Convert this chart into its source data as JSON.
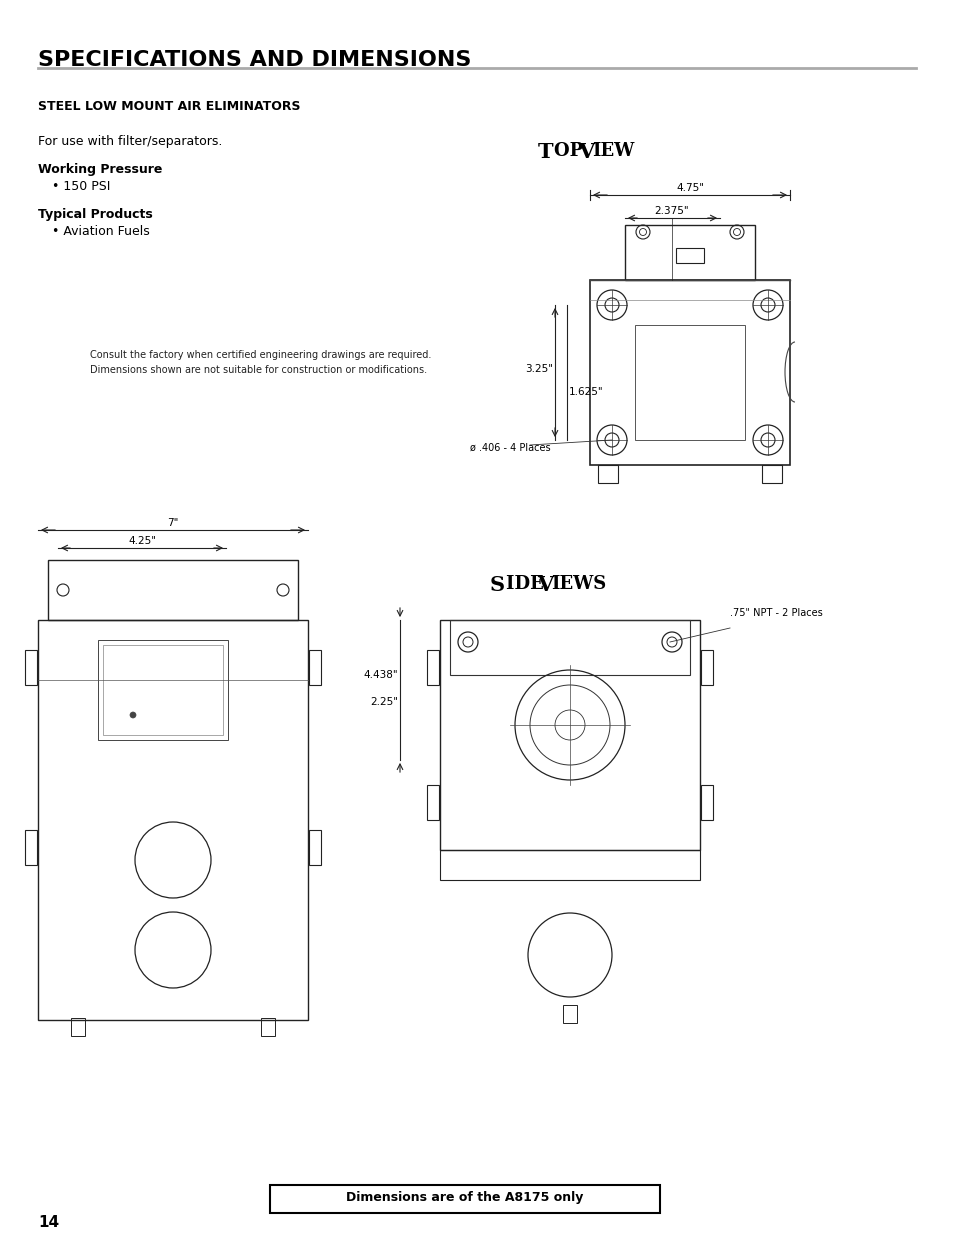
{
  "title": "SPECIFICATIONS AND DIMENSIONS",
  "subtitle": "STEEL LOW MOUNT AIR ELIMINATORS",
  "text_use": "For use with filter/separators.",
  "wp_header": "Working Pressure",
  "wp_val": "• 150 PSI",
  "tp_header": "Typical Products",
  "tp_val": "• Aviation Fuels",
  "consult_line1": "Consult the factory when certified engineering drawings are required.",
  "consult_line2": "Dimensions shown are not suitable for construction or modifications.",
  "top_view_label": "Top View",
  "side_views_label": "Side Views",
  "dim_note": "Dimensions are of the A8175 only",
  "page_num": "14",
  "bg_color": "#ffffff",
  "line_color": "#000000",
  "dim_line_color": "#333333"
}
